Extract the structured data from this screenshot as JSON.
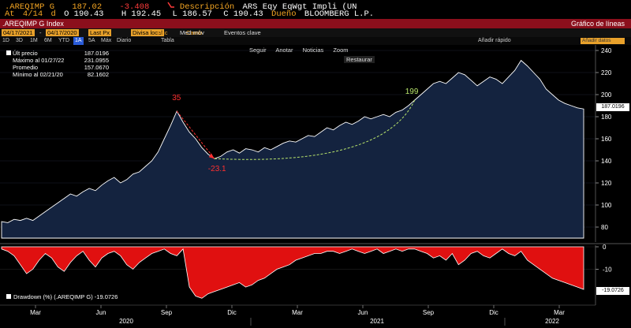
{
  "quote": {
    "ticker": ".AREQIMP G",
    "last": "187.02",
    "change": "-3.408",
    "description_label": "Descripción",
    "description": "ARS Eqy EqWgt Impli (UN",
    "at_label": "At",
    "date": "4/14",
    "open_label": "d",
    "open": "O 190.43",
    "high": "H 192.45",
    "low": "L 186.57",
    "close": "C 190.43",
    "owner_label": "Dueño",
    "owner": "BLOOMBERG L.P."
  },
  "title_bar": {
    "ticker": ".AREQIMP G Index",
    "right": "Gráfico de líneas"
  },
  "toolbar1": {
    "start_date": "04/17/2021",
    "end_date": "04/17/2020",
    "last_px": "Last Px",
    "currency": "Divisa local",
    "acc": "Acc",
    "camb": "Camb",
    "med_mov": "Med móv",
    "eventos": "Eventos clave"
  },
  "toolbar2": {
    "ranges": [
      "1D",
      "3D",
      "1M",
      "6M",
      "YTD",
      "1A",
      "5A",
      "Máx"
    ],
    "active_range": "1A",
    "frequency": "Diario",
    "tabla": "Tabla",
    "quick_add": "Añadir rápido",
    "search_placeholder": "Añadir datos"
  },
  "chart_tools": {
    "seguir": "Seguir",
    "anotar": "Anotar",
    "noticias": "Noticias",
    "zoom": "Zoom",
    "restaurar": "Restaurar"
  },
  "legend": {
    "ult_label": "Últ precio",
    "ult_value": "187.0196",
    "max_label": "Máximo al 01/27/22",
    "max_value": "231.0955",
    "avg_label": "Promedio",
    "avg_value": "157.0670",
    "min_label": "Mínimo al 02/21/20",
    "min_value": "82.1602"
  },
  "drawdown_legend": "Drawdown (%) (.AREQIMP G) -19.0726",
  "last_tag": "187.0196",
  "dd_tag": "-19.0726",
  "annotations": {
    "peak_label": "35",
    "trough_label": "-23.1",
    "recovery_label": "199"
  },
  "colors": {
    "amber": "#f5a623",
    "red_bar": "#8b0f1c",
    "area_fill": "#14233f",
    "drawdown_fill": "#e01010",
    "annotation_red": "#ff3030",
    "annotation_green": "#b7e36b"
  },
  "chart_data": [
    {
      "type": "area",
      "x_ticks": [
        "Mar",
        "Jun",
        "Sep",
        "Dic",
        "Mar",
        "Jun",
        "Sep",
        "Dic",
        "Mar"
      ],
      "year_labels": [
        "2020",
        "2021",
        "2022"
      ],
      "y_ticks": [
        80,
        100,
        120,
        140,
        160,
        180,
        200,
        220,
        240
      ],
      "ylim": [
        70,
        245
      ],
      "values": [
        85,
        84,
        87,
        86,
        88,
        86,
        90,
        94,
        98,
        102,
        106,
        110,
        108,
        112,
        115,
        113,
        118,
        122,
        125,
        120,
        123,
        128,
        130,
        135,
        140,
        148,
        160,
        172,
        185,
        175,
        166,
        160,
        152,
        146,
        142,
        144,
        148,
        150,
        147,
        151,
        150,
        148,
        152,
        150,
        153,
        156,
        158,
        157,
        160,
        163,
        162,
        166,
        170,
        168,
        172,
        175,
        173,
        176,
        180,
        178,
        180,
        182,
        180,
        184,
        186,
        190,
        195,
        200,
        205,
        210,
        212,
        210,
        215,
        220,
        218,
        213,
        208,
        212,
        216,
        214,
        210,
        216,
        222,
        231,
        226,
        220,
        214,
        205,
        200,
        195,
        192,
        190,
        188,
        187
      ]
    },
    {
      "type": "area",
      "y_ticks": [
        0,
        -10
      ],
      "ylim": [
        -25,
        0
      ],
      "values": [
        -1,
        -2,
        -4,
        -8,
        -12,
        -10,
        -6,
        -3,
        -5,
        -9,
        -11,
        -7,
        -4,
        -2,
        -6,
        -9,
        -5,
        -3,
        -2,
        -4,
        -8,
        -10,
        -7,
        -5,
        -3,
        -2,
        -1,
        -3,
        -4,
        -1,
        -18,
        -22,
        -23,
        -21,
        -20,
        -19,
        -18,
        -17,
        -16,
        -18,
        -17,
        -15,
        -14,
        -12,
        -10,
        -9,
        -8,
        -6,
        -5,
        -4,
        -3,
        -3,
        -2,
        -2,
        -3,
        -2,
        -1,
        -2,
        -3,
        -2,
        -1,
        -3,
        -2,
        -1,
        -2,
        -1,
        -1,
        -2,
        -3,
        -5,
        -4,
        -6,
        -3,
        -8,
        -6,
        -3,
        -2,
        -4,
        -5,
        -3,
        -1,
        -3,
        -4,
        -2,
        -6,
        -8,
        -10,
        -12,
        -14,
        -15,
        -16,
        -17,
        -18,
        -19
      ]
    }
  ]
}
